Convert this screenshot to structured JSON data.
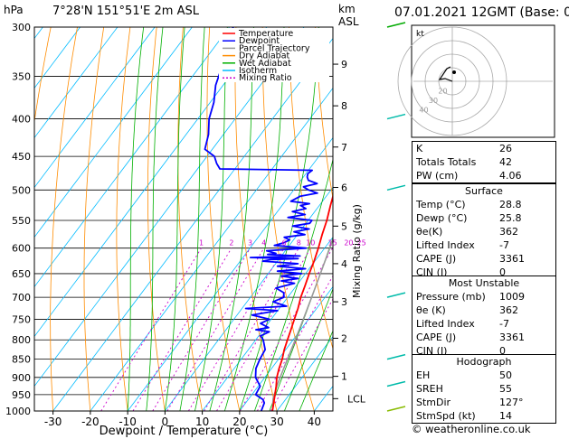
{
  "header": {
    "location": "7°28'N  151°51'E  2m  ASL",
    "datetime": "07.01.2021  12GMT  (Base: 00)",
    "y_unit": "hPa",
    "km_label": "km",
    "asl_label": "ASL"
  },
  "axes": {
    "pressure_levels": [
      300,
      350,
      400,
      450,
      500,
      550,
      600,
      650,
      700,
      750,
      800,
      850,
      900,
      950,
      1000
    ],
    "temp_ticks": [
      -30,
      -20,
      -10,
      0,
      10,
      20,
      30,
      40
    ],
    "xlabel": "Dewpoint / Temperature (°C)",
    "km_ticks": [
      {
        "label": "9",
        "p": 337
      },
      {
        "label": "8",
        "p": 384
      },
      {
        "label": "7",
        "p": 437
      },
      {
        "label": "6",
        "p": 496
      },
      {
        "label": "5",
        "p": 560
      },
      {
        "label": "4",
        "p": 630
      },
      {
        "label": "3",
        "p": 710
      },
      {
        "label": "2",
        "p": 796
      },
      {
        "label": "1",
        "p": 897
      },
      {
        "label": "LCL",
        "p": 962
      }
    ],
    "mixing_ratio_label": "Mixing Ratio (g/kg)",
    "mixing_ratio_values": [
      "1",
      "2",
      "3",
      "4",
      "6",
      "8",
      "10",
      "15",
      "20",
      "25"
    ]
  },
  "legend": [
    {
      "label": "Temperature",
      "color": "#ff0000",
      "dash": "solid"
    },
    {
      "label": "Dewpoint",
      "color": "#0000ff",
      "dash": "solid"
    },
    {
      "label": "Parcel Trajectory",
      "color": "#999999",
      "dash": "solid"
    },
    {
      "label": "Dry Adiabat",
      "color": "#ff8c00",
      "dash": "solid"
    },
    {
      "label": "Wet Adiabat",
      "color": "#00b000",
      "dash": "solid"
    },
    {
      "label": "Isotherm",
      "color": "#00bbff",
      "dash": "solid"
    },
    {
      "label": "Mixing Ratio",
      "color": "#cc00cc",
      "dash": "dotted"
    }
  ],
  "hodograph": {
    "unit": "kt",
    "ring_labels": [
      "40",
      "30",
      "20"
    ]
  },
  "indices": [
    {
      "label": "K",
      "value": "26"
    },
    {
      "label": "Totals Totals",
      "value": "42"
    },
    {
      "label": "PW (cm)",
      "value": "4.06"
    }
  ],
  "surface": {
    "title": "Surface",
    "rows": [
      {
        "label": "Temp (°C)",
        "value": "28.8"
      },
      {
        "label": "Dewp (°C)",
        "value": "25.8"
      },
      {
        "label": "θe(K)",
        "value": "362"
      },
      {
        "label": "Lifted Index",
        "value": "-7"
      },
      {
        "label": "CAPE (J)",
        "value": "3361"
      },
      {
        "label": "CIN (J)",
        "value": "0"
      }
    ]
  },
  "most_unstable": {
    "title": "Most Unstable",
    "rows": [
      {
        "label": "Pressure (mb)",
        "value": "1009"
      },
      {
        "label": "θe (K)",
        "value": "362"
      },
      {
        "label": "Lifted Index",
        "value": "-7"
      },
      {
        "label": "CAPE (J)",
        "value": "3361"
      },
      {
        "label": "CIN (J)",
        "value": "0"
      }
    ]
  },
  "hodograph_table": {
    "title": "Hodograph",
    "rows": [
      {
        "label": "EH",
        "value": "50"
      },
      {
        "label": "SREH",
        "value": "55"
      },
      {
        "label": "StmDir",
        "value": "127°"
      },
      {
        "label": "StmSpd (kt)",
        "value": "14"
      }
    ]
  },
  "copyright": "© weatheronline.co.uk",
  "colors": {
    "temperature": "#ff0000",
    "dewpoint": "#0000ff",
    "parcel": "#999999",
    "dry": "#ff8c00",
    "wet": "#00b000",
    "isotherm": "#00bbff",
    "mixing": "#cc00cc"
  },
  "chart_data": {
    "type": "line",
    "title": "",
    "xlabel": "Dewpoint / Temperature (°C)",
    "ylabel": "hPa",
    "xlim": [
      -35,
      40
    ],
    "ylim": [
      1000,
      300
    ],
    "y_scale": "log-pressure",
    "skew": true,
    "grid": true,
    "series": [
      {
        "name": "Temperature",
        "p": [
          1000,
          975,
          950,
          925,
          900,
          875,
          850,
          825,
          800,
          775,
          750,
          725,
          700,
          675,
          650,
          625,
          600,
          575,
          550,
          525,
          500,
          475,
          465,
          460,
          450,
          440,
          430,
          420,
          410,
          400,
          380,
          360,
          340,
          320,
          300
        ],
        "t": [
          28.8,
          27.5,
          26.2,
          24.8,
          23.2,
          22.0,
          21.0,
          19.6,
          18.5,
          17.4,
          16.2,
          15.0,
          13.5,
          12.3,
          11.0,
          9.8,
          8.3,
          6.6,
          5.0,
          3.0,
          1.0,
          -1.5,
          -1.0,
          -3.0,
          -3.3,
          -5.0,
          -6.0,
          -7.5,
          -9.5,
          -11.0,
          -14.5,
          -18.0,
          -21.5,
          -25.5,
          -29.5
        ]
      },
      {
        "name": "Dewpoint",
        "p": [
          1000,
          975,
          965,
          950,
          925,
          900,
          875,
          850,
          825,
          800,
          790,
          780,
          775,
          770,
          760,
          750,
          740,
          730,
          725,
          720,
          710,
          700,
          690,
          680,
          670,
          665,
          660,
          655,
          650,
          645,
          640,
          635,
          630,
          625,
          622,
          620,
          618,
          615,
          612,
          610,
          605,
          600,
          595,
          590,
          585,
          580,
          575,
          570,
          565,
          560,
          555,
          550,
          545,
          540,
          535,
          530,
          525,
          522,
          518,
          510,
          505,
          500,
          495,
          490,
          485,
          480,
          475,
          470,
          468,
          460,
          450,
          440,
          420,
          400,
          380,
          360,
          340,
          320,
          300
        ],
        "t": [
          25.8,
          25.0,
          24.0,
          21.0,
          20.5,
          17.5,
          15.8,
          15.0,
          14.5,
          12.0,
          10.5,
          12.0,
          8.0,
          11.0,
          8.0,
          9.5,
          4.0,
          10.0,
          1.0,
          11.5,
          7.0,
          9.0,
          8.0,
          5.0,
          9.0,
          5.0,
          9.0,
          4.0,
          9.0,
          2.0,
          9.0,
          1.0,
          6.0,
          -4.0,
          -2.0,
          5.0,
          -8.0,
          5.0,
          -4.0,
          -2.0,
          -5.0,
          5.0,
          -4.0,
          -2.0,
          -1.0,
          -3.0,
          2.0,
          -1.5,
          2.0,
          -3.0,
          1.0,
          1.0,
          -6.0,
          -2.0,
          -6.0,
          -3.0,
          -5.0,
          -3.0,
          -8.5,
          -7.0,
          -3.0,
          -6.0,
          -8.0,
          -5.0,
          -8.0,
          -9.0,
          -9.5,
          -9.0,
          -34.0,
          -36.0,
          -38.0,
          -42.0,
          -44.0,
          -47.0,
          -49.0,
          -52.0,
          -54.0,
          -57.0,
          -59.0
        ]
      },
      {
        "name": "Parcel Trajectory",
        "p": [
          1000,
          962,
          925,
          900,
          850,
          800,
          750,
          700,
          650,
          600,
          550,
          500,
          450,
          400,
          350,
          300
        ],
        "t": [
          28.8,
          26.5,
          25.0,
          24.1,
          22.4,
          20.6,
          18.6,
          16.4,
          14.0,
          11.4,
          8.3,
          4.8,
          0.6,
          -4.5,
          -11.0,
          -19.0
        ]
      }
    ]
  }
}
